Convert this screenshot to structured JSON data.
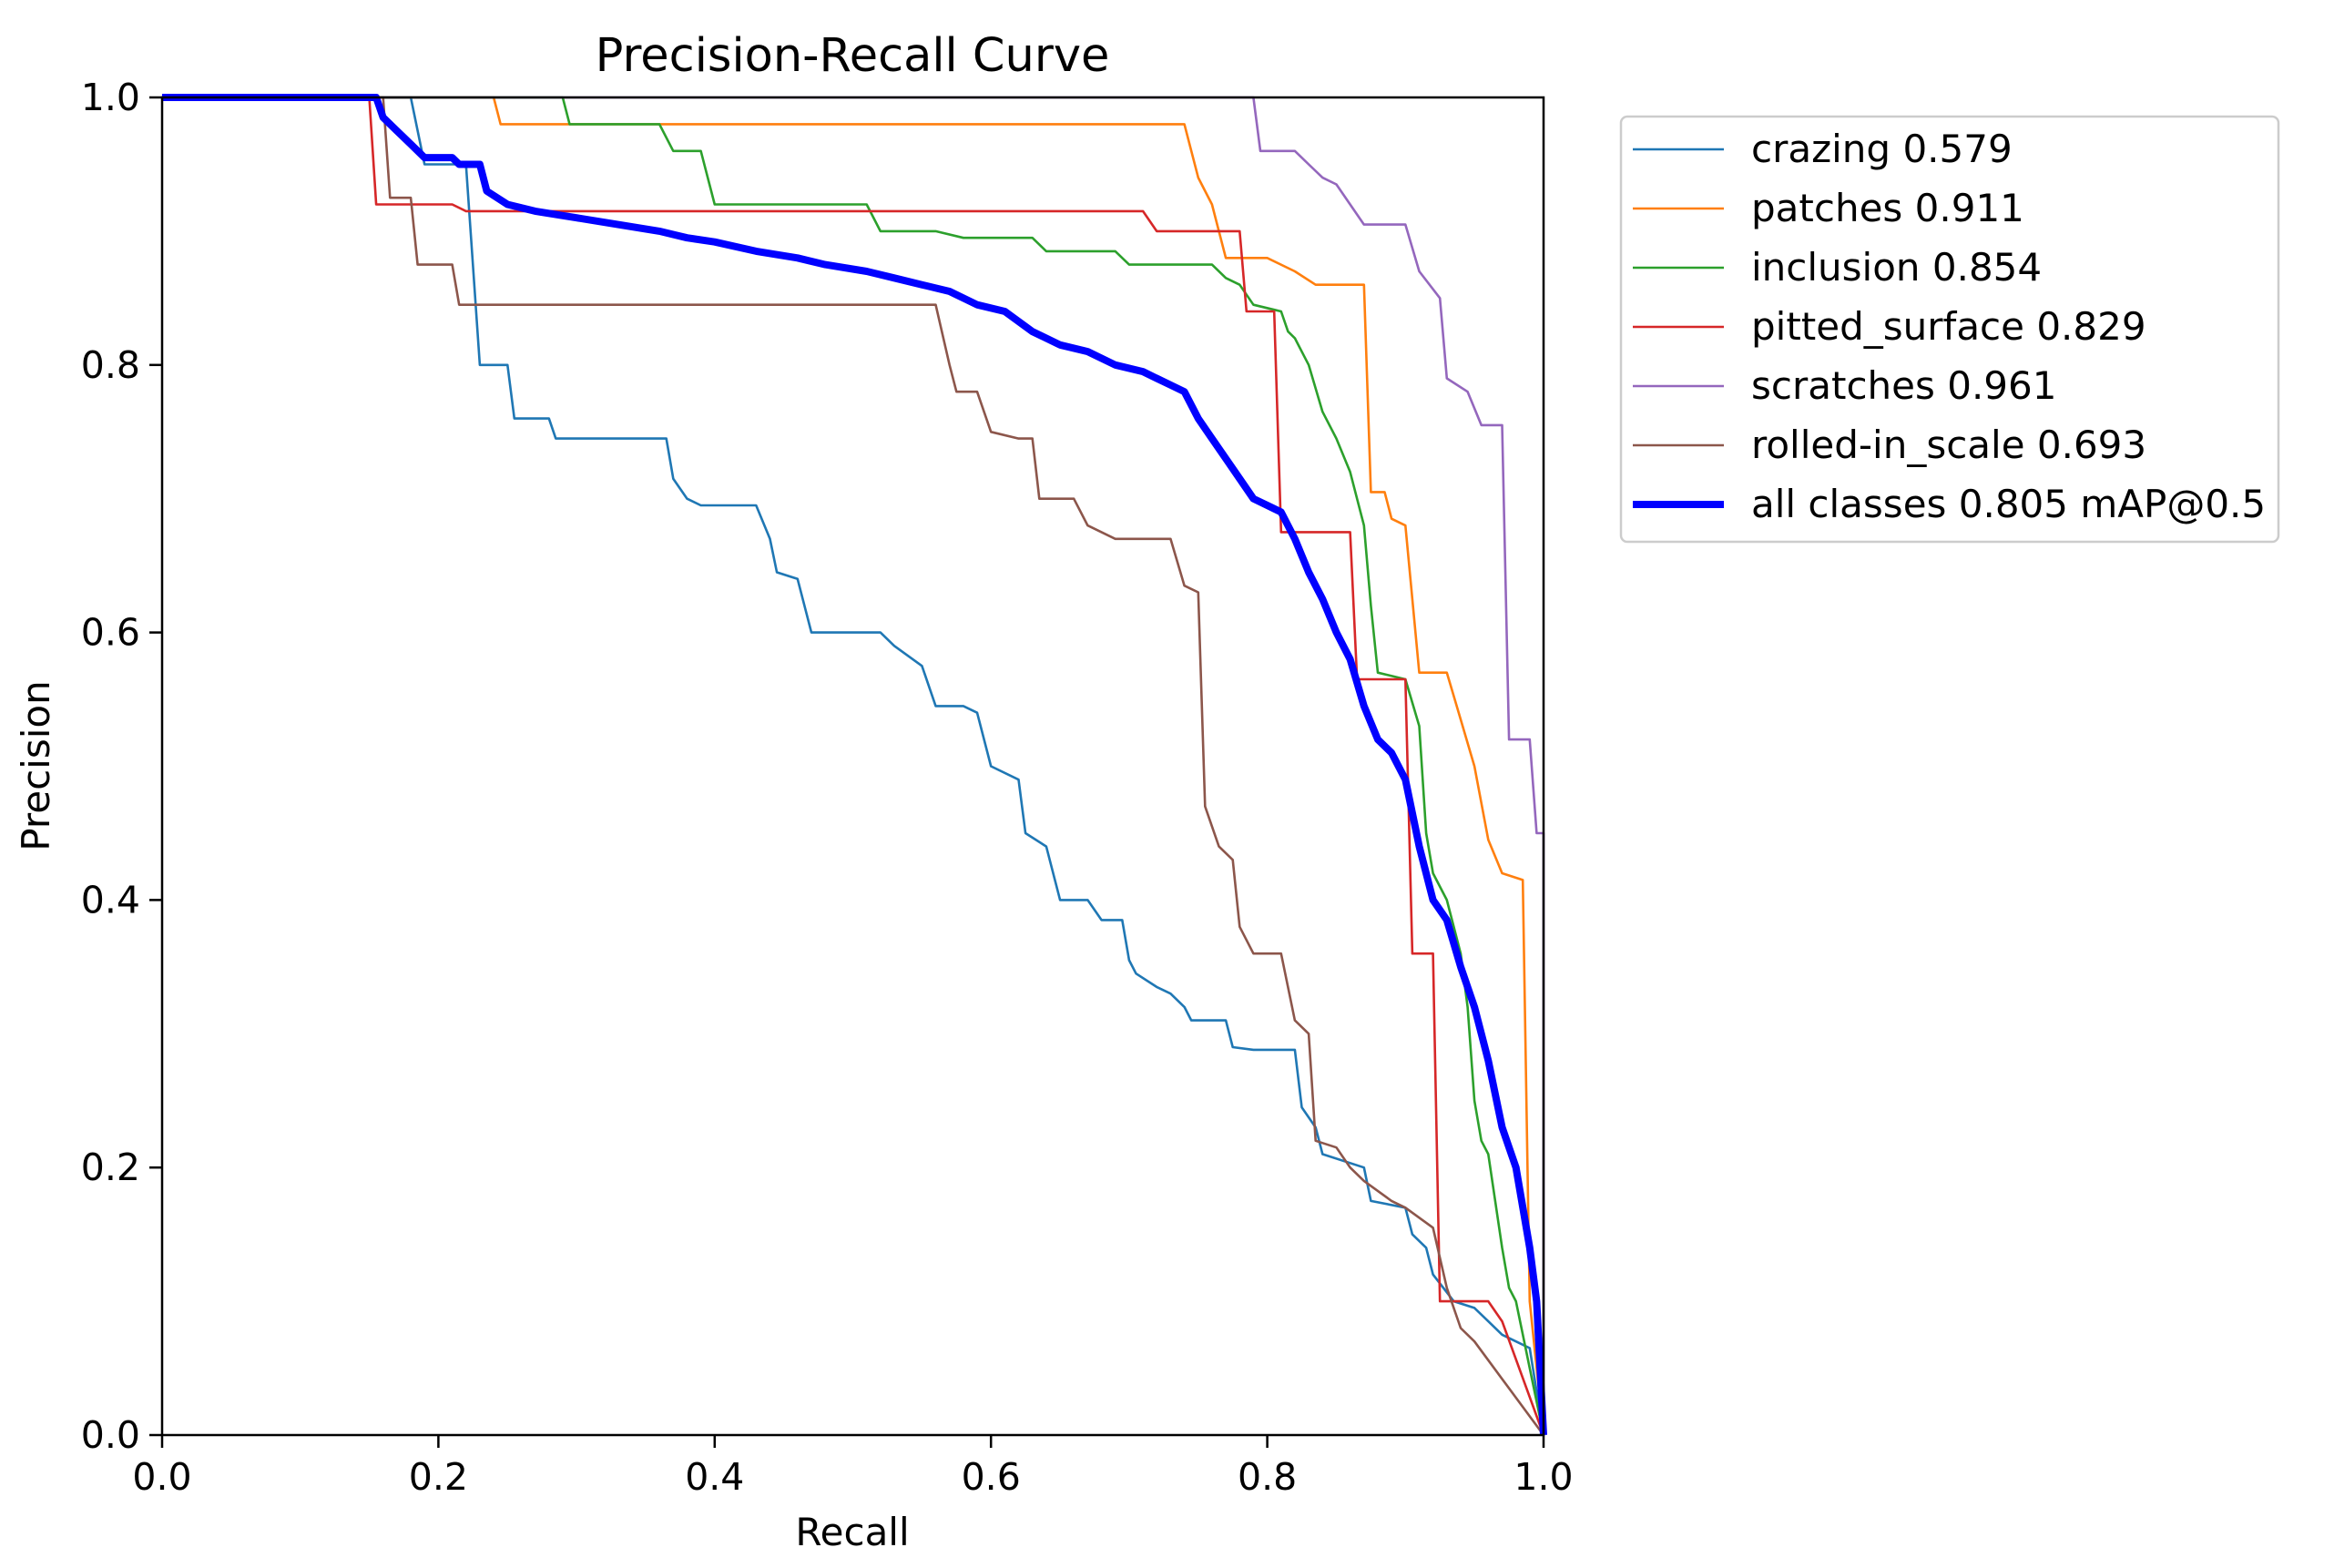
{
  "chart_data": {
    "type": "line",
    "title": "Precision-Recall Curve",
    "xlabel": "Recall",
    "ylabel": "Precision",
    "xlim": [
      0,
      1
    ],
    "ylim": [
      0,
      1
    ],
    "xticks": [
      "0.0",
      "0.2",
      "0.4",
      "0.6",
      "0.8",
      "1.0"
    ],
    "yticks": [
      "0.0",
      "0.2",
      "0.4",
      "0.6",
      "0.8",
      "1.0"
    ],
    "legend_position": "outside-top-right",
    "series": [
      {
        "name": "crazing",
        "legend": "crazing 0.579",
        "color": "#1f77b4",
        "width": "thin",
        "points": [
          [
            0,
            1
          ],
          [
            0.18,
            1
          ],
          [
            0.19,
            0.95
          ],
          [
            0.22,
            0.95
          ],
          [
            0.23,
            0.8
          ],
          [
            0.25,
            0.8
          ],
          [
            0.255,
            0.76
          ],
          [
            0.28,
            0.76
          ],
          [
            0.285,
            0.745
          ],
          [
            0.365,
            0.745
          ],
          [
            0.37,
            0.715
          ],
          [
            0.38,
            0.7
          ],
          [
            0.39,
            0.695
          ],
          [
            0.43,
            0.695
          ],
          [
            0.44,
            0.67
          ],
          [
            0.445,
            0.645
          ],
          [
            0.46,
            0.64
          ],
          [
            0.47,
            0.6
          ],
          [
            0.52,
            0.6
          ],
          [
            0.53,
            0.59
          ],
          [
            0.55,
            0.575
          ],
          [
            0.56,
            0.545
          ],
          [
            0.58,
            0.545
          ],
          [
            0.59,
            0.54
          ],
          [
            0.6,
            0.5
          ],
          [
            0.62,
            0.49
          ],
          [
            0.625,
            0.45
          ],
          [
            0.64,
            0.44
          ],
          [
            0.65,
            0.4
          ],
          [
            0.67,
            0.4
          ],
          [
            0.68,
            0.385
          ],
          [
            0.695,
            0.385
          ],
          [
            0.7,
            0.355
          ],
          [
            0.705,
            0.345
          ],
          [
            0.72,
            0.335
          ],
          [
            0.73,
            0.33
          ],
          [
            0.74,
            0.32
          ],
          [
            0.745,
            0.31
          ],
          [
            0.77,
            0.31
          ],
          [
            0.775,
            0.29
          ],
          [
            0.79,
            0.288
          ],
          [
            0.82,
            0.288
          ],
          [
            0.825,
            0.245
          ],
          [
            0.835,
            0.23
          ],
          [
            0.84,
            0.21
          ],
          [
            0.87,
            0.2
          ],
          [
            0.875,
            0.175
          ],
          [
            0.9,
            0.17
          ],
          [
            0.905,
            0.15
          ],
          [
            0.915,
            0.14
          ],
          [
            0.92,
            0.12
          ],
          [
            0.935,
            0.1
          ],
          [
            0.95,
            0.095
          ],
          [
            0.96,
            0.085
          ],
          [
            0.97,
            0.075
          ],
          [
            0.98,
            0.07
          ],
          [
            0.99,
            0.065
          ],
          [
            1.0,
            0
          ]
        ]
      },
      {
        "name": "patches",
        "legend": "patches 0.911",
        "color": "#ff7f0e",
        "width": "thin",
        "points": [
          [
            0,
            1
          ],
          [
            0.24,
            1
          ],
          [
            0.245,
            0.98
          ],
          [
            0.74,
            0.98
          ],
          [
            0.745,
            0.96
          ],
          [
            0.75,
            0.94
          ],
          [
            0.76,
            0.92
          ],
          [
            0.765,
            0.9
          ],
          [
            0.77,
            0.88
          ],
          [
            0.8,
            0.88
          ],
          [
            0.82,
            0.87
          ],
          [
            0.835,
            0.86
          ],
          [
            0.87,
            0.86
          ],
          [
            0.875,
            0.705
          ],
          [
            0.885,
            0.705
          ],
          [
            0.89,
            0.685
          ],
          [
            0.9,
            0.68
          ],
          [
            0.91,
            0.57
          ],
          [
            0.93,
            0.57
          ],
          [
            0.94,
            0.535
          ],
          [
            0.95,
            0.5
          ],
          [
            0.96,
            0.445
          ],
          [
            0.97,
            0.42
          ],
          [
            0.985,
            0.415
          ],
          [
            0.99,
            0.1
          ],
          [
            1.0,
            0
          ]
        ]
      },
      {
        "name": "inclusion",
        "legend": "inclusion 0.854",
        "color": "#2ca02c",
        "width": "thin",
        "points": [
          [
            0,
            1
          ],
          [
            0.29,
            1
          ],
          [
            0.295,
            0.98
          ],
          [
            0.36,
            0.98
          ],
          [
            0.37,
            0.96
          ],
          [
            0.39,
            0.96
          ],
          [
            0.4,
            0.92
          ],
          [
            0.51,
            0.92
          ],
          [
            0.52,
            0.9
          ],
          [
            0.56,
            0.9
          ],
          [
            0.58,
            0.895
          ],
          [
            0.63,
            0.895
          ],
          [
            0.64,
            0.885
          ],
          [
            0.69,
            0.885
          ],
          [
            0.7,
            0.875
          ],
          [
            0.76,
            0.875
          ],
          [
            0.77,
            0.865
          ],
          [
            0.78,
            0.86
          ],
          [
            0.79,
            0.845
          ],
          [
            0.81,
            0.84
          ],
          [
            0.815,
            0.825
          ],
          [
            0.82,
            0.82
          ],
          [
            0.83,
            0.8
          ],
          [
            0.84,
            0.765
          ],
          [
            0.85,
            0.745
          ],
          [
            0.86,
            0.72
          ],
          [
            0.87,
            0.68
          ],
          [
            0.875,
            0.62
          ],
          [
            0.88,
            0.57
          ],
          [
            0.9,
            0.565
          ],
          [
            0.91,
            0.53
          ],
          [
            0.915,
            0.45
          ],
          [
            0.92,
            0.42
          ],
          [
            0.93,
            0.4
          ],
          [
            0.94,
            0.36
          ],
          [
            0.945,
            0.32
          ],
          [
            0.95,
            0.25
          ],
          [
            0.955,
            0.22
          ],
          [
            0.96,
            0.21
          ],
          [
            0.97,
            0.14
          ],
          [
            0.975,
            0.11
          ],
          [
            0.98,
            0.1
          ],
          [
            0.99,
            0.05
          ],
          [
            1.0,
            0
          ]
        ]
      },
      {
        "name": "pitted_surface",
        "legend": "pitted_surface 0.829",
        "color": "#d62728",
        "width": "thin",
        "points": [
          [
            0,
            1
          ],
          [
            0.15,
            1
          ],
          [
            0.155,
            0.92
          ],
          [
            0.21,
            0.92
          ],
          [
            0.22,
            0.915
          ],
          [
            0.71,
            0.915
          ],
          [
            0.72,
            0.9
          ],
          [
            0.78,
            0.9
          ],
          [
            0.785,
            0.84
          ],
          [
            0.805,
            0.84
          ],
          [
            0.81,
            0.675
          ],
          [
            0.86,
            0.675
          ],
          [
            0.865,
            0.565
          ],
          [
            0.9,
            0.565
          ],
          [
            0.905,
            0.36
          ],
          [
            0.92,
            0.36
          ],
          [
            0.925,
            0.1
          ],
          [
            0.96,
            0.1
          ],
          [
            0.97,
            0.085
          ],
          [
            1.0,
            0
          ]
        ]
      },
      {
        "name": "scratches",
        "legend": "scratches 0.961",
        "color": "#9467bd",
        "width": "thin",
        "points": [
          [
            0,
            1
          ],
          [
            0.79,
            1
          ],
          [
            0.795,
            0.96
          ],
          [
            0.82,
            0.96
          ],
          [
            0.83,
            0.95
          ],
          [
            0.84,
            0.94
          ],
          [
            0.85,
            0.935
          ],
          [
            0.86,
            0.92
          ],
          [
            0.87,
            0.905
          ],
          [
            0.9,
            0.905
          ],
          [
            0.91,
            0.87
          ],
          [
            0.925,
            0.85
          ],
          [
            0.93,
            0.79
          ],
          [
            0.945,
            0.78
          ],
          [
            0.955,
            0.755
          ],
          [
            0.97,
            0.755
          ],
          [
            0.975,
            0.52
          ],
          [
            0.99,
            0.52
          ],
          [
            0.995,
            0.45
          ],
          [
            1.0,
            0.45
          ],
          [
            1.0,
            0
          ]
        ]
      },
      {
        "name": "rolled-in_scale",
        "legend": "rolled-in_scale 0.693",
        "color": "#8c564b",
        "width": "thin",
        "points": [
          [
            0,
            1
          ],
          [
            0.16,
            1
          ],
          [
            0.165,
            0.925
          ],
          [
            0.18,
            0.925
          ],
          [
            0.185,
            0.875
          ],
          [
            0.21,
            0.875
          ],
          [
            0.215,
            0.845
          ],
          [
            0.56,
            0.845
          ],
          [
            0.57,
            0.8
          ],
          [
            0.575,
            0.78
          ],
          [
            0.59,
            0.78
          ],
          [
            0.6,
            0.75
          ],
          [
            0.62,
            0.745
          ],
          [
            0.63,
            0.745
          ],
          [
            0.635,
            0.7
          ],
          [
            0.66,
            0.7
          ],
          [
            0.67,
            0.68
          ],
          [
            0.69,
            0.67
          ],
          [
            0.73,
            0.67
          ],
          [
            0.74,
            0.635
          ],
          [
            0.75,
            0.63
          ],
          [
            0.755,
            0.47
          ],
          [
            0.765,
            0.44
          ],
          [
            0.775,
            0.43
          ],
          [
            0.78,
            0.38
          ],
          [
            0.79,
            0.36
          ],
          [
            0.81,
            0.36
          ],
          [
            0.82,
            0.31
          ],
          [
            0.83,
            0.3
          ],
          [
            0.835,
            0.22
          ],
          [
            0.85,
            0.215
          ],
          [
            0.86,
            0.2
          ],
          [
            0.87,
            0.19
          ],
          [
            0.89,
            0.175
          ],
          [
            0.9,
            0.17
          ],
          [
            0.92,
            0.155
          ],
          [
            0.93,
            0.11
          ],
          [
            0.94,
            0.08
          ],
          [
            0.95,
            0.07
          ],
          [
            1.0,
            0
          ]
        ]
      },
      {
        "name": "all classes",
        "legend": "all classes 0.805 mAP@0.5",
        "color": "#0000ff",
        "width": "thick",
        "points": [
          [
            0,
            1
          ],
          [
            0.155,
            1
          ],
          [
            0.16,
            0.985
          ],
          [
            0.17,
            0.975
          ],
          [
            0.18,
            0.965
          ],
          [
            0.19,
            0.955
          ],
          [
            0.21,
            0.955
          ],
          [
            0.215,
            0.95
          ],
          [
            0.23,
            0.95
          ],
          [
            0.235,
            0.93
          ],
          [
            0.25,
            0.92
          ],
          [
            0.27,
            0.915
          ],
          [
            0.3,
            0.91
          ],
          [
            0.33,
            0.905
          ],
          [
            0.36,
            0.9
          ],
          [
            0.38,
            0.895
          ],
          [
            0.4,
            0.892
          ],
          [
            0.43,
            0.885
          ],
          [
            0.46,
            0.88
          ],
          [
            0.48,
            0.875
          ],
          [
            0.51,
            0.87
          ],
          [
            0.53,
            0.865
          ],
          [
            0.55,
            0.86
          ],
          [
            0.57,
            0.855
          ],
          [
            0.59,
            0.845
          ],
          [
            0.61,
            0.84
          ],
          [
            0.63,
            0.825
          ],
          [
            0.65,
            0.815
          ],
          [
            0.67,
            0.81
          ],
          [
            0.69,
            0.8
          ],
          [
            0.71,
            0.795
          ],
          [
            0.72,
            0.79
          ],
          [
            0.73,
            0.785
          ],
          [
            0.74,
            0.78
          ],
          [
            0.75,
            0.76
          ],
          [
            0.76,
            0.745
          ],
          [
            0.77,
            0.73
          ],
          [
            0.78,
            0.715
          ],
          [
            0.79,
            0.7
          ],
          [
            0.8,
            0.695
          ],
          [
            0.81,
            0.69
          ],
          [
            0.82,
            0.67
          ],
          [
            0.83,
            0.645
          ],
          [
            0.84,
            0.625
          ],
          [
            0.85,
            0.6
          ],
          [
            0.86,
            0.58
          ],
          [
            0.87,
            0.545
          ],
          [
            0.88,
            0.52
          ],
          [
            0.89,
            0.51
          ],
          [
            0.9,
            0.49
          ],
          [
            0.91,
            0.44
          ],
          [
            0.92,
            0.4
          ],
          [
            0.93,
            0.385
          ],
          [
            0.94,
            0.35
          ],
          [
            0.95,
            0.32
          ],
          [
            0.96,
            0.28
          ],
          [
            0.97,
            0.23
          ],
          [
            0.98,
            0.2
          ],
          [
            0.99,
            0.14
          ],
          [
            0.995,
            0.1
          ],
          [
            1.0,
            0
          ]
        ]
      }
    ]
  }
}
